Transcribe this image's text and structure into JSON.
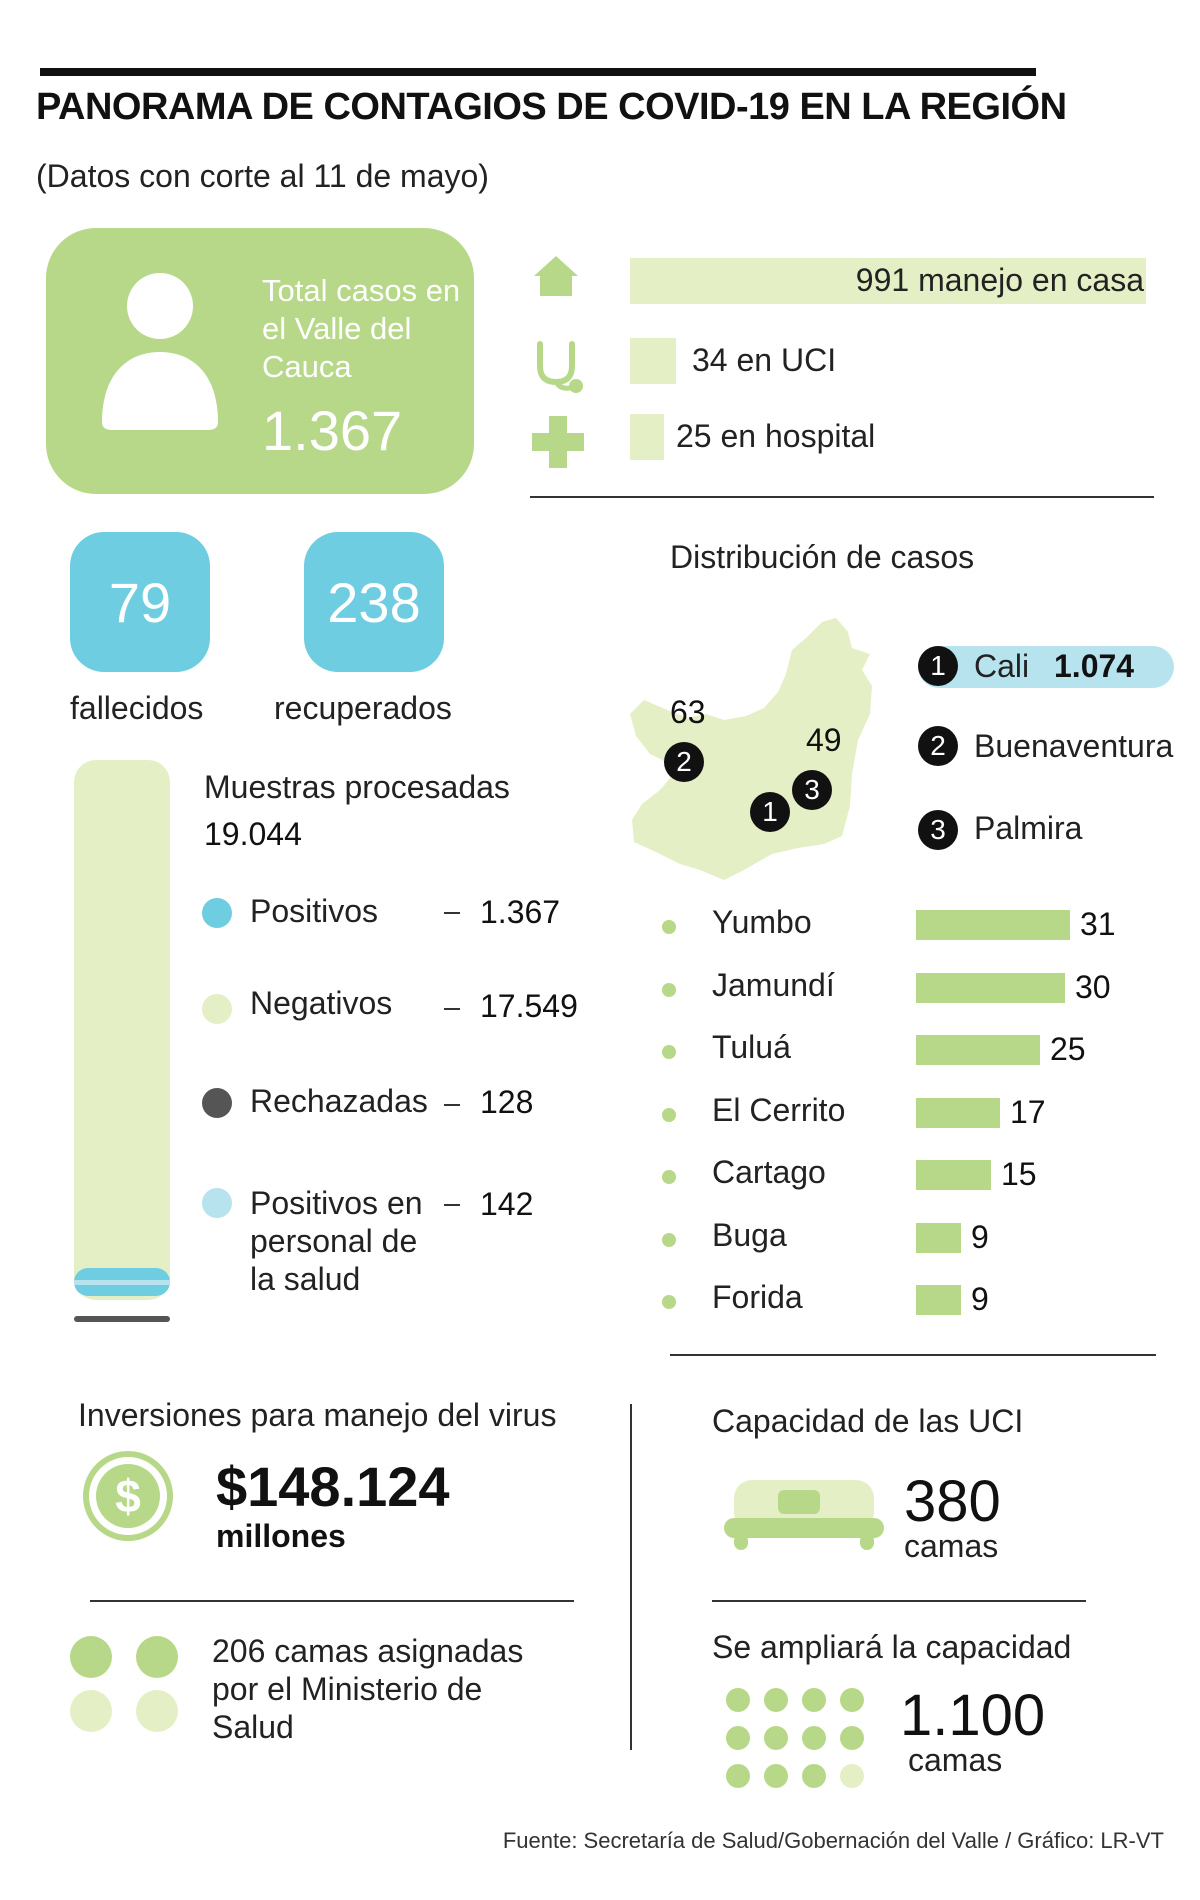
{
  "header": {
    "title": "PANORAMA DE CONTAGIOS DE COVID-19 EN LA REGIÓN",
    "subtitle": "(Datos con corte al 11 de mayo)"
  },
  "total": {
    "label": "Total casos en el Valle del Cauca",
    "value": "1.367"
  },
  "care": [
    {
      "icon": "house-icon",
      "text": "991 manejo en casa",
      "value": 991
    },
    {
      "icon": "stethoscope-icon",
      "text": "34 en UCI",
      "value": 34
    },
    {
      "icon": "medical-cross-icon",
      "text": "25 en hospital",
      "value": 25
    }
  ],
  "outcomes": {
    "deaths": {
      "value": "79",
      "label": "fallecidos"
    },
    "recovered": {
      "value": "238",
      "label": "recuperados"
    }
  },
  "samples": {
    "title": "Muestras procesadas",
    "total": "19.044",
    "items": [
      {
        "label": "Positivos",
        "value": "1.367",
        "color": "#6ecde0"
      },
      {
        "label": "Negativos",
        "value": "17.549",
        "color": "#e4efc6"
      },
      {
        "label": "Rechazadas",
        "value": "128",
        "color": "#555555"
      },
      {
        "label": "Positivos en personal de la salud",
        "value": "142",
        "color": "#b7e3ee"
      }
    ]
  },
  "distribution": {
    "title": "Distribución de casos",
    "map_labels": {
      "buenaventura": "63",
      "palmira": "49"
    },
    "top": [
      {
        "rank": "1",
        "name": "Cali",
        "value": "1.074"
      },
      {
        "rank": "2",
        "name": "Buenaventura"
      },
      {
        "rank": "3",
        "name": "Palmira"
      }
    ],
    "cities": [
      {
        "name": "Yumbo",
        "value": 31
      },
      {
        "name": "Jamundí",
        "value": 30
      },
      {
        "name": "Tuluá",
        "value": 25
      },
      {
        "name": "El Cerrito",
        "value": 17
      },
      {
        "name": "Cartago",
        "value": 15
      },
      {
        "name": "Buga",
        "value": 9
      },
      {
        "name": "Forida",
        "value": 9
      }
    ]
  },
  "investment": {
    "title": "Inversiones para manejo del virus",
    "amount": "$148.124",
    "unit": "millones"
  },
  "beds_ministry": {
    "text": "206 camas asignadas por el Ministerio de Salud"
  },
  "icu": {
    "title": "Capacidad de las UCI",
    "value": "380",
    "unit": "camas"
  },
  "expansion": {
    "title": "Se ampliará la capacidad",
    "value": "1.100",
    "unit": "camas"
  },
  "source": "Fuente: Secretaría de Salud/Gobernación del Valle / Gráfico: LR-VT",
  "colors": {
    "green": "#b7d888",
    "pale_green": "#e4efc6",
    "blue": "#6ecde0",
    "light_blue": "#b7e3ee",
    "dark": "#111111"
  }
}
